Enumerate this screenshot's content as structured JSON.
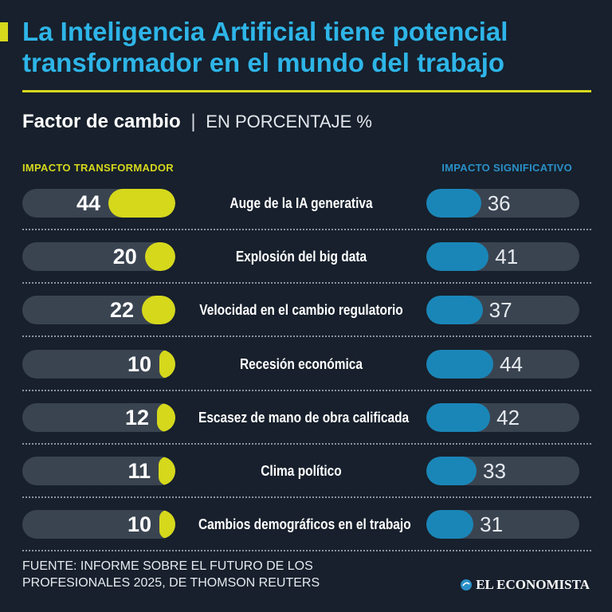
{
  "header": {
    "title": "La Inteligencia Artificial tiene potencial transformador en el mundo del trabajo",
    "subtitle_main": "Factor de cambio",
    "subtitle_separator": "|",
    "subtitle_unit": "EN PORCENTAJE %"
  },
  "chart_data": {
    "type": "bar",
    "title": "La Inteligencia Artificial tiene potencial transformador en el mundo del trabajo",
    "subtitle": "Factor de cambio | EN PORCENTAJE %",
    "categories": [
      "Auge de la IA generativa",
      "Explosión del big data",
      "Velocidad en el cambio regulatorio",
      "Recesión económica",
      "Escasez de mano de obra calificada",
      "Clima político",
      "Cambios demográficos en el trabajo"
    ],
    "series": [
      {
        "name": "IMPACTO TRANSFORMADOR",
        "color": "#d6d81c",
        "values": [
          44,
          20,
          22,
          10,
          12,
          11,
          10
        ]
      },
      {
        "name": "IMPACTO SIGNIFICATIVO",
        "color": "#1a86b8",
        "values": [
          36,
          41,
          37,
          44,
          42,
          33,
          31
        ]
      }
    ],
    "ylim": [
      0,
      100
    ]
  },
  "footer": {
    "source": "FUENTE: INFORME SOBRE EL FUTURO DE LOS PROFESIONALES 2025, DE THOMSON REUTERS",
    "brand": "EL ECONOMISTA",
    "brand_icon": "el-economista-logo-icon"
  },
  "colors": {
    "background": "#17202c",
    "title": "#2eb5e8",
    "accent_yellow": "#d6d81c",
    "accent_blue": "#1a86b8",
    "track": "#3a4451"
  }
}
